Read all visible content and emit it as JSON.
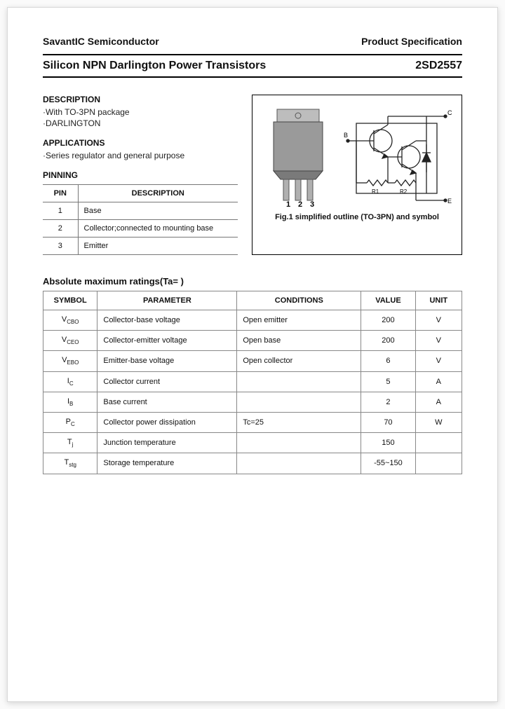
{
  "header": {
    "company": "SavantIC Semiconductor",
    "spec": "Product Specification"
  },
  "title_row": {
    "title": "Silicon NPN Darlington Power Transistors",
    "part": "2SD2557"
  },
  "description": {
    "heading": "DESCRIPTION",
    "lines": [
      "·With TO-3PN package",
      "·DARLINGTON"
    ]
  },
  "applications": {
    "heading": "APPLICATIONS",
    "lines": [
      "·Series regulator and general purpose"
    ]
  },
  "pinning": {
    "heading": "PINNING",
    "cols": [
      "PIN",
      "DESCRIPTION"
    ],
    "rows": [
      {
        "pin": "1",
        "desc": "Base"
      },
      {
        "pin": "2",
        "desc": "Collector;connected to mounting base"
      },
      {
        "pin": "3",
        "desc": "Emitter"
      }
    ]
  },
  "figure": {
    "caption": "Fig.1 simplified outline (TO-3PN) and symbol",
    "pin_labels": [
      "1",
      "2",
      "3"
    ],
    "schem_labels": {
      "B": "B",
      "C": "C",
      "E": "E",
      "R1": "R1",
      "R2": "R2"
    },
    "colors": {
      "pkg_body": "#9a9a9a",
      "pkg_tab": "#bdbdbd",
      "pkg_pin": "#b0b0b0",
      "schem_stroke": "#222222"
    }
  },
  "ratings": {
    "heading": "Absolute maximum ratings(Ta= )",
    "cols": [
      "SYMBOL",
      "PARAMETER",
      "CONDITIONS",
      "VALUE",
      "UNIT"
    ],
    "rows": [
      {
        "sym": "V",
        "sub": "CBO",
        "param": "Collector-base voltage",
        "cond": "Open emitter",
        "val": "200",
        "unit": "V"
      },
      {
        "sym": "V",
        "sub": "CEO",
        "param": "Collector-emitter voltage",
        "cond": "Open base",
        "val": "200",
        "unit": "V"
      },
      {
        "sym": "V",
        "sub": "EBO",
        "param": "Emitter-base voltage",
        "cond": "Open collector",
        "val": "6",
        "unit": "V"
      },
      {
        "sym": "I",
        "sub": "C",
        "param": "Collector current",
        "cond": "",
        "val": "5",
        "unit": "A"
      },
      {
        "sym": "I",
        "sub": "B",
        "param": "Base current",
        "cond": "",
        "val": "2",
        "unit": "A"
      },
      {
        "sym": "P",
        "sub": "C",
        "param": "Collector power dissipation",
        "cond": "Tc=25",
        "val": "70",
        "unit": "W"
      },
      {
        "sym": "T",
        "sub": "j",
        "param": "Junction temperature",
        "cond": "",
        "val": "150",
        "unit": ""
      },
      {
        "sym": "T",
        "sub": "stg",
        "param": "Storage temperature",
        "cond": "",
        "val": "-55~150",
        "unit": ""
      }
    ]
  }
}
